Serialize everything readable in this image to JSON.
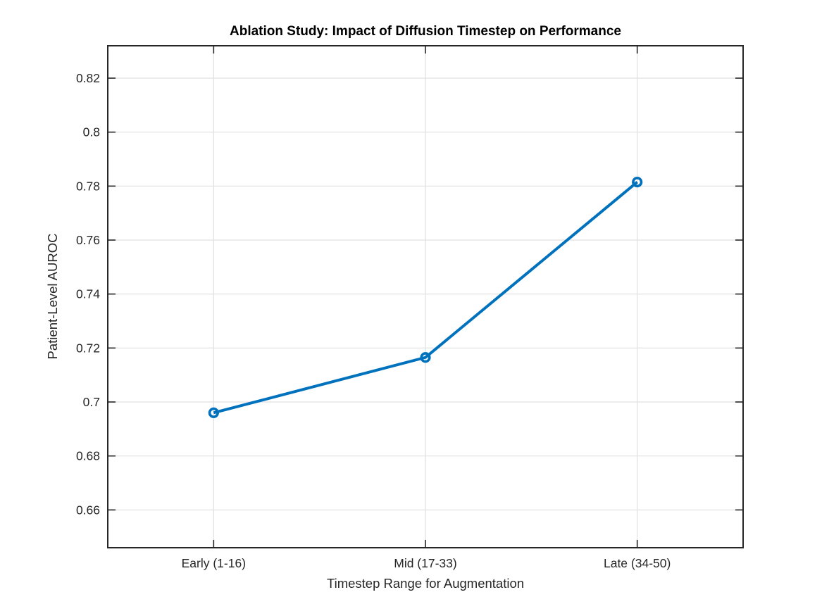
{
  "figure": {
    "background_color": "#ffffff"
  },
  "chart_data": {
    "type": "line",
    "title": "Ablation Study: Impact of Diffusion Timestep on Performance",
    "xlabel": "Timestep Range for Augmentation",
    "ylabel": "Patient-Level AUROC",
    "categories": [
      "Early (1-16)",
      "Mid (17-33)",
      "Late (34-50)"
    ],
    "series": [
      {
        "name": "Patient-Level AUROC",
        "values": [
          0.696,
          0.7165,
          0.7815
        ]
      }
    ],
    "x_positions": [
      1,
      2,
      3
    ],
    "xlim": [
      0.5,
      3.5
    ],
    "ylim": [
      0.646,
      0.832
    ],
    "yticks": [
      0.66,
      0.68,
      0.7,
      0.72,
      0.74,
      0.76,
      0.78,
      0.8,
      0.82
    ],
    "ytick_labels": [
      "0.66",
      "0.68",
      "0.7",
      "0.72",
      "0.74",
      "0.76",
      "0.78",
      "0.8",
      "0.82"
    ],
    "grid": true,
    "box": true,
    "legend_position": "none",
    "line_color": "#0072BD",
    "marker": "open-circle",
    "marker_color": "#0072BD",
    "grid_color": "#e0e0e0",
    "axis_color": "#262626",
    "tick_label_color": "#262626",
    "title_color": "#000000"
  }
}
